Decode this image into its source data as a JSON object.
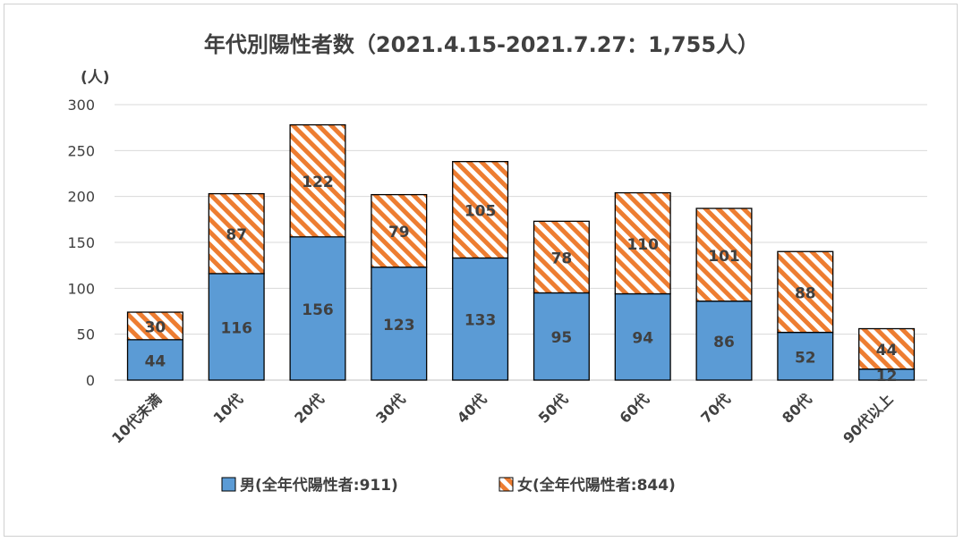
{
  "chart_data": {
    "type": "bar",
    "stacked": true,
    "title": "年代別陽性者数（2021.4.15-2021.7.27：1,755人）",
    "ylabel": "(人)",
    "xlabel": "",
    "ylim": [
      0,
      300
    ],
    "yticks": [
      0,
      50,
      100,
      150,
      200,
      250,
      300
    ],
    "grid": true,
    "legend_position": "bottom",
    "categories": [
      "10代未満",
      "10代",
      "20代",
      "30代",
      "40代",
      "50代",
      "60代",
      "70代",
      "80代",
      "90代以上"
    ],
    "series": [
      {
        "name": "男(全年代陽性者:911)",
        "values": [
          44,
          116,
          156,
          123,
          133,
          95,
          94,
          86,
          52,
          12
        ],
        "color": "#5b9bd5",
        "pattern": "solid"
      },
      {
        "name": "女(全年代陽性者:844)",
        "values": [
          30,
          87,
          122,
          79,
          105,
          78,
          110,
          101,
          88,
          44
        ],
        "color": "#ed7d31",
        "pattern": "diagonal-stripes"
      }
    ]
  }
}
